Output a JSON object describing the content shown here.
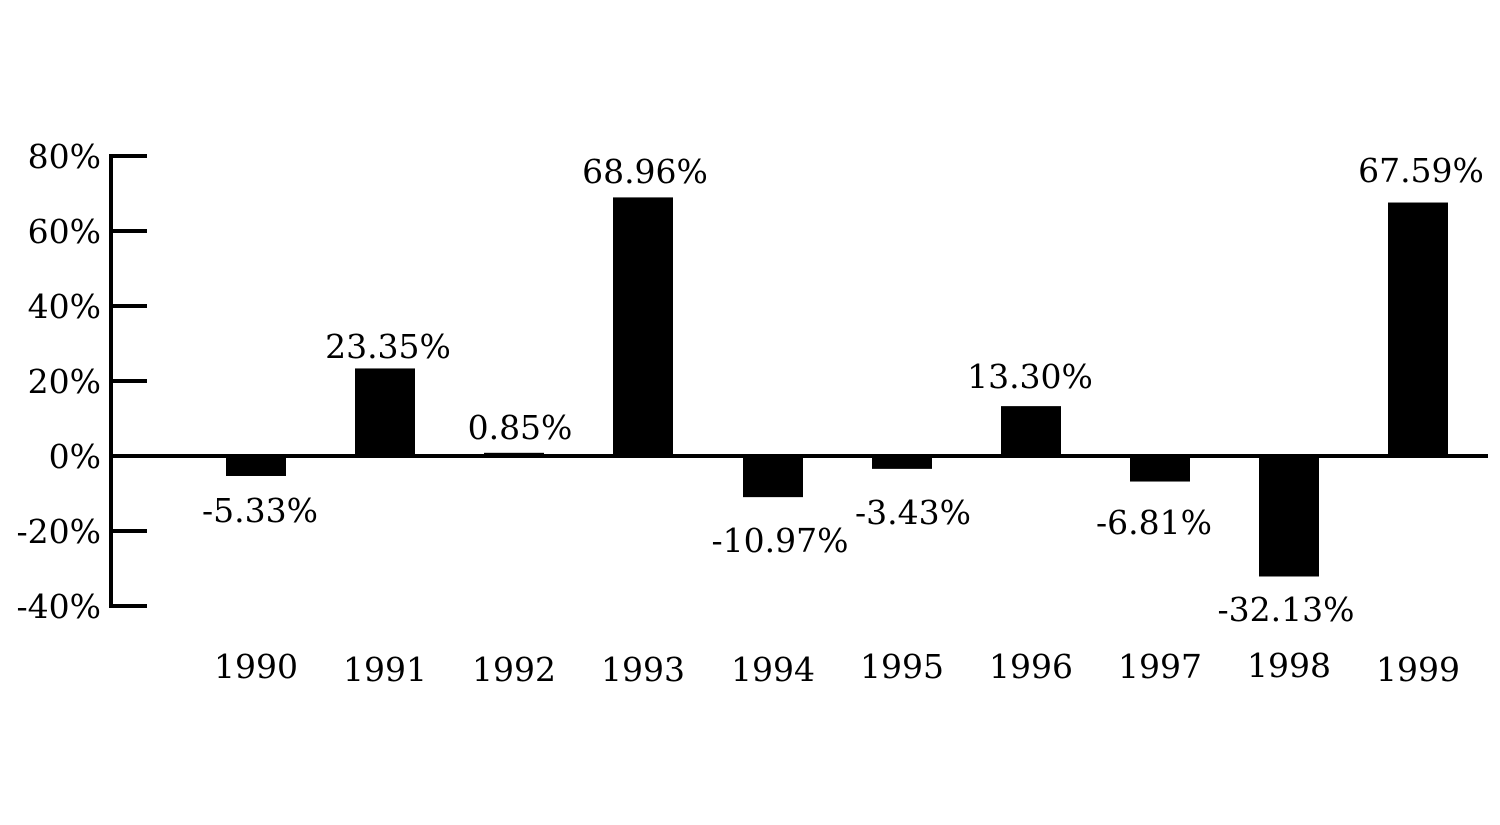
{
  "chart_data": {
    "type": "bar",
    "title": "",
    "xlabel": "",
    "ylabel": "",
    "categories": [
      "1990",
      "1991",
      "1992",
      "1993",
      "1994",
      "1995",
      "1996",
      "1997",
      "1998",
      "1999"
    ],
    "values": [
      -5.33,
      23.35,
      0.85,
      68.96,
      -10.97,
      -3.43,
      13.3,
      -6.81,
      -32.13,
      67.59
    ],
    "data_labels": [
      "-5.33%",
      "23.35%",
      "0.85%",
      "68.96%",
      "-10.97%",
      "-3.43%",
      "13.30%",
      "-6.81%",
      "-32.13%",
      "67.59%"
    ],
    "ylim": [
      -40,
      80
    ],
    "yticks": [
      80,
      60,
      40,
      20,
      0,
      -20,
      -40
    ],
    "ytick_labels": [
      "80%",
      "60%",
      "40%",
      "20%",
      "0%",
      "-20%",
      "-40%"
    ],
    "grid": false,
    "bar_color": "#000000"
  }
}
